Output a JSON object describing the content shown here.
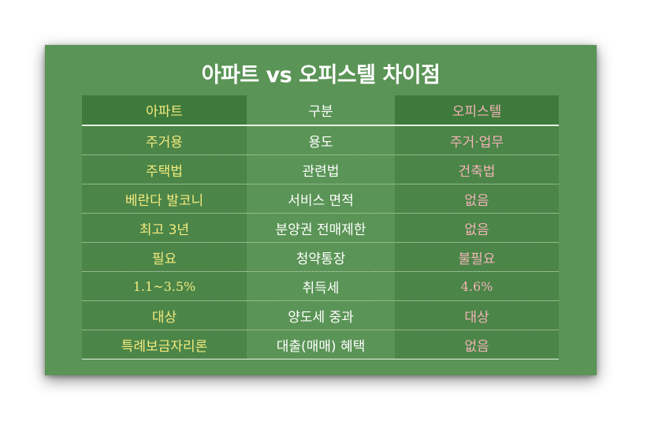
{
  "title": "아파트 vs 오피스텔 차이점",
  "header": {
    "apartment": "아파트",
    "category": "구분",
    "officetel": "오피스텔"
  },
  "rows": [
    {
      "apartment": "주거용",
      "category": "용도",
      "officetel": "주거·업무"
    },
    {
      "apartment": "주택법",
      "category": "관련법",
      "officetel": "건축법"
    },
    {
      "apartment": "베란다 발코니",
      "category": "서비스 면적",
      "officetel": "없음"
    },
    {
      "apartment": "최고 3년",
      "category": "분양권 전매제한",
      "officetel": "없음"
    },
    {
      "apartment": "필요",
      "category": "청약통장",
      "officetel": "불필요"
    },
    {
      "apartment": "1.1~3.5%",
      "category": "취득세",
      "officetel": "4.6%"
    },
    {
      "apartment": "대상",
      "category": "양도세 중과",
      "officetel": "대상"
    },
    {
      "apartment": "특례보금자리론",
      "category": "대출(매매) 혜택",
      "officetel": "없음"
    }
  ],
  "colors": {
    "background": "#5a9456",
    "apartment_text": "#f3eb7e",
    "officetel_text": "#f2b3b8",
    "category_text": "#ffffff"
  }
}
